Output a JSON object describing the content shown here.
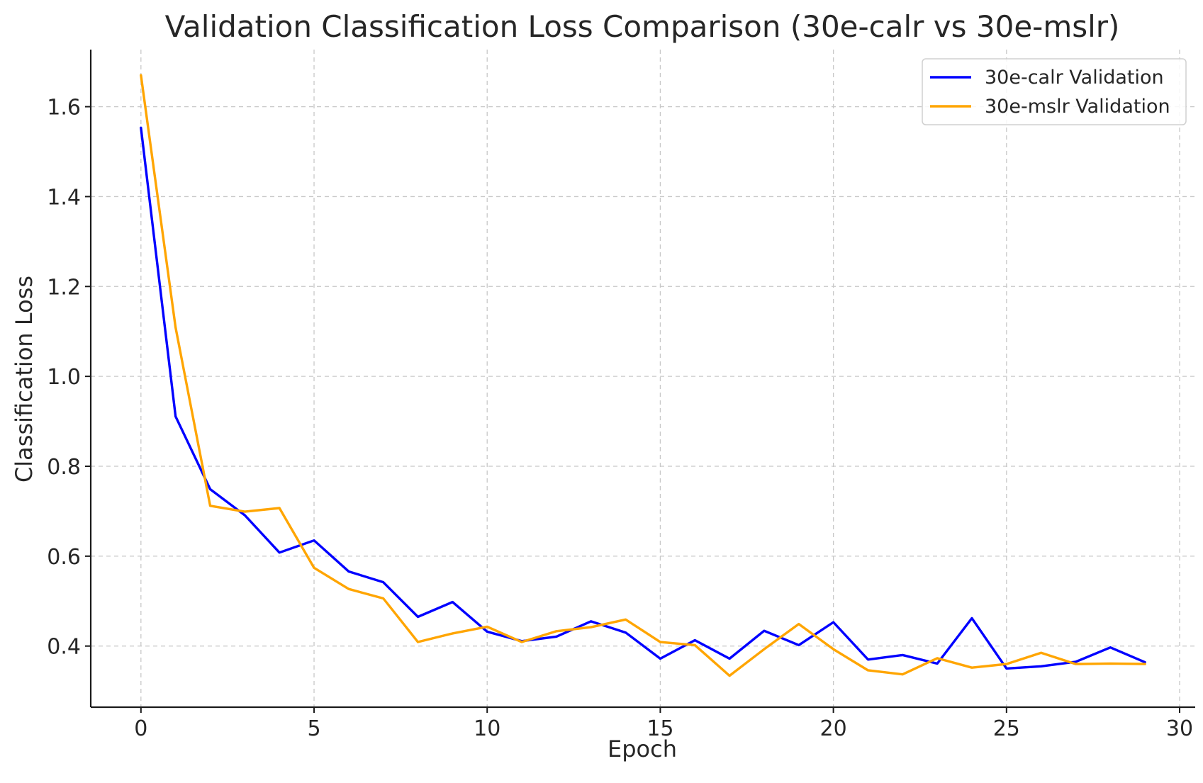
{
  "chart_data": {
    "type": "line",
    "title": "Validation Classification Loss Comparison (30e-calr vs 30e-mslr)",
    "xlabel": "Epoch",
    "ylabel": "Classification Loss",
    "xlim": [
      -1.45,
      30.45
    ],
    "ylim": [
      0.264,
      1.727
    ],
    "xticks": [
      0,
      5,
      10,
      15,
      20,
      25,
      30
    ],
    "yticks": [
      0.4,
      0.6,
      0.8,
      1.0,
      1.2,
      1.4,
      1.6
    ],
    "xtick_labels": [
      "0",
      "5",
      "10",
      "15",
      "20",
      "25",
      "30"
    ],
    "ytick_labels": [
      "0.4",
      "0.6",
      "0.8",
      "1.0",
      "1.2",
      "1.4",
      "1.6"
    ],
    "grid": true,
    "legend_position": "top-right",
    "x": [
      0,
      1,
      2,
      3,
      4,
      5,
      6,
      7,
      8,
      9,
      10,
      11,
      12,
      13,
      14,
      15,
      16,
      17,
      18,
      19,
      20,
      21,
      22,
      23,
      24,
      25,
      26,
      27,
      28,
      29
    ],
    "series": [
      {
        "name": "30e-calr Validation",
        "color": "#0000ff",
        "values": [
          1.553,
          0.911,
          0.749,
          0.691,
          0.608,
          0.635,
          0.566,
          0.542,
          0.465,
          0.498,
          0.432,
          0.411,
          0.421,
          0.455,
          0.43,
          0.372,
          0.413,
          0.372,
          0.434,
          0.402,
          0.453,
          0.37,
          0.38,
          0.361,
          0.462,
          0.35,
          0.355,
          0.365,
          0.397,
          0.364
        ]
      },
      {
        "name": "30e-mslr Validation",
        "color": "#ffa500",
        "values": [
          1.67,
          1.109,
          0.712,
          0.699,
          0.707,
          0.574,
          0.527,
          0.506,
          0.409,
          0.428,
          0.443,
          0.409,
          0.433,
          0.442,
          0.459,
          0.409,
          0.402,
          0.334,
          0.393,
          0.449,
          0.393,
          0.346,
          0.337,
          0.373,
          0.352,
          0.36,
          0.385,
          0.36,
          0.361,
          0.36
        ]
      }
    ]
  }
}
